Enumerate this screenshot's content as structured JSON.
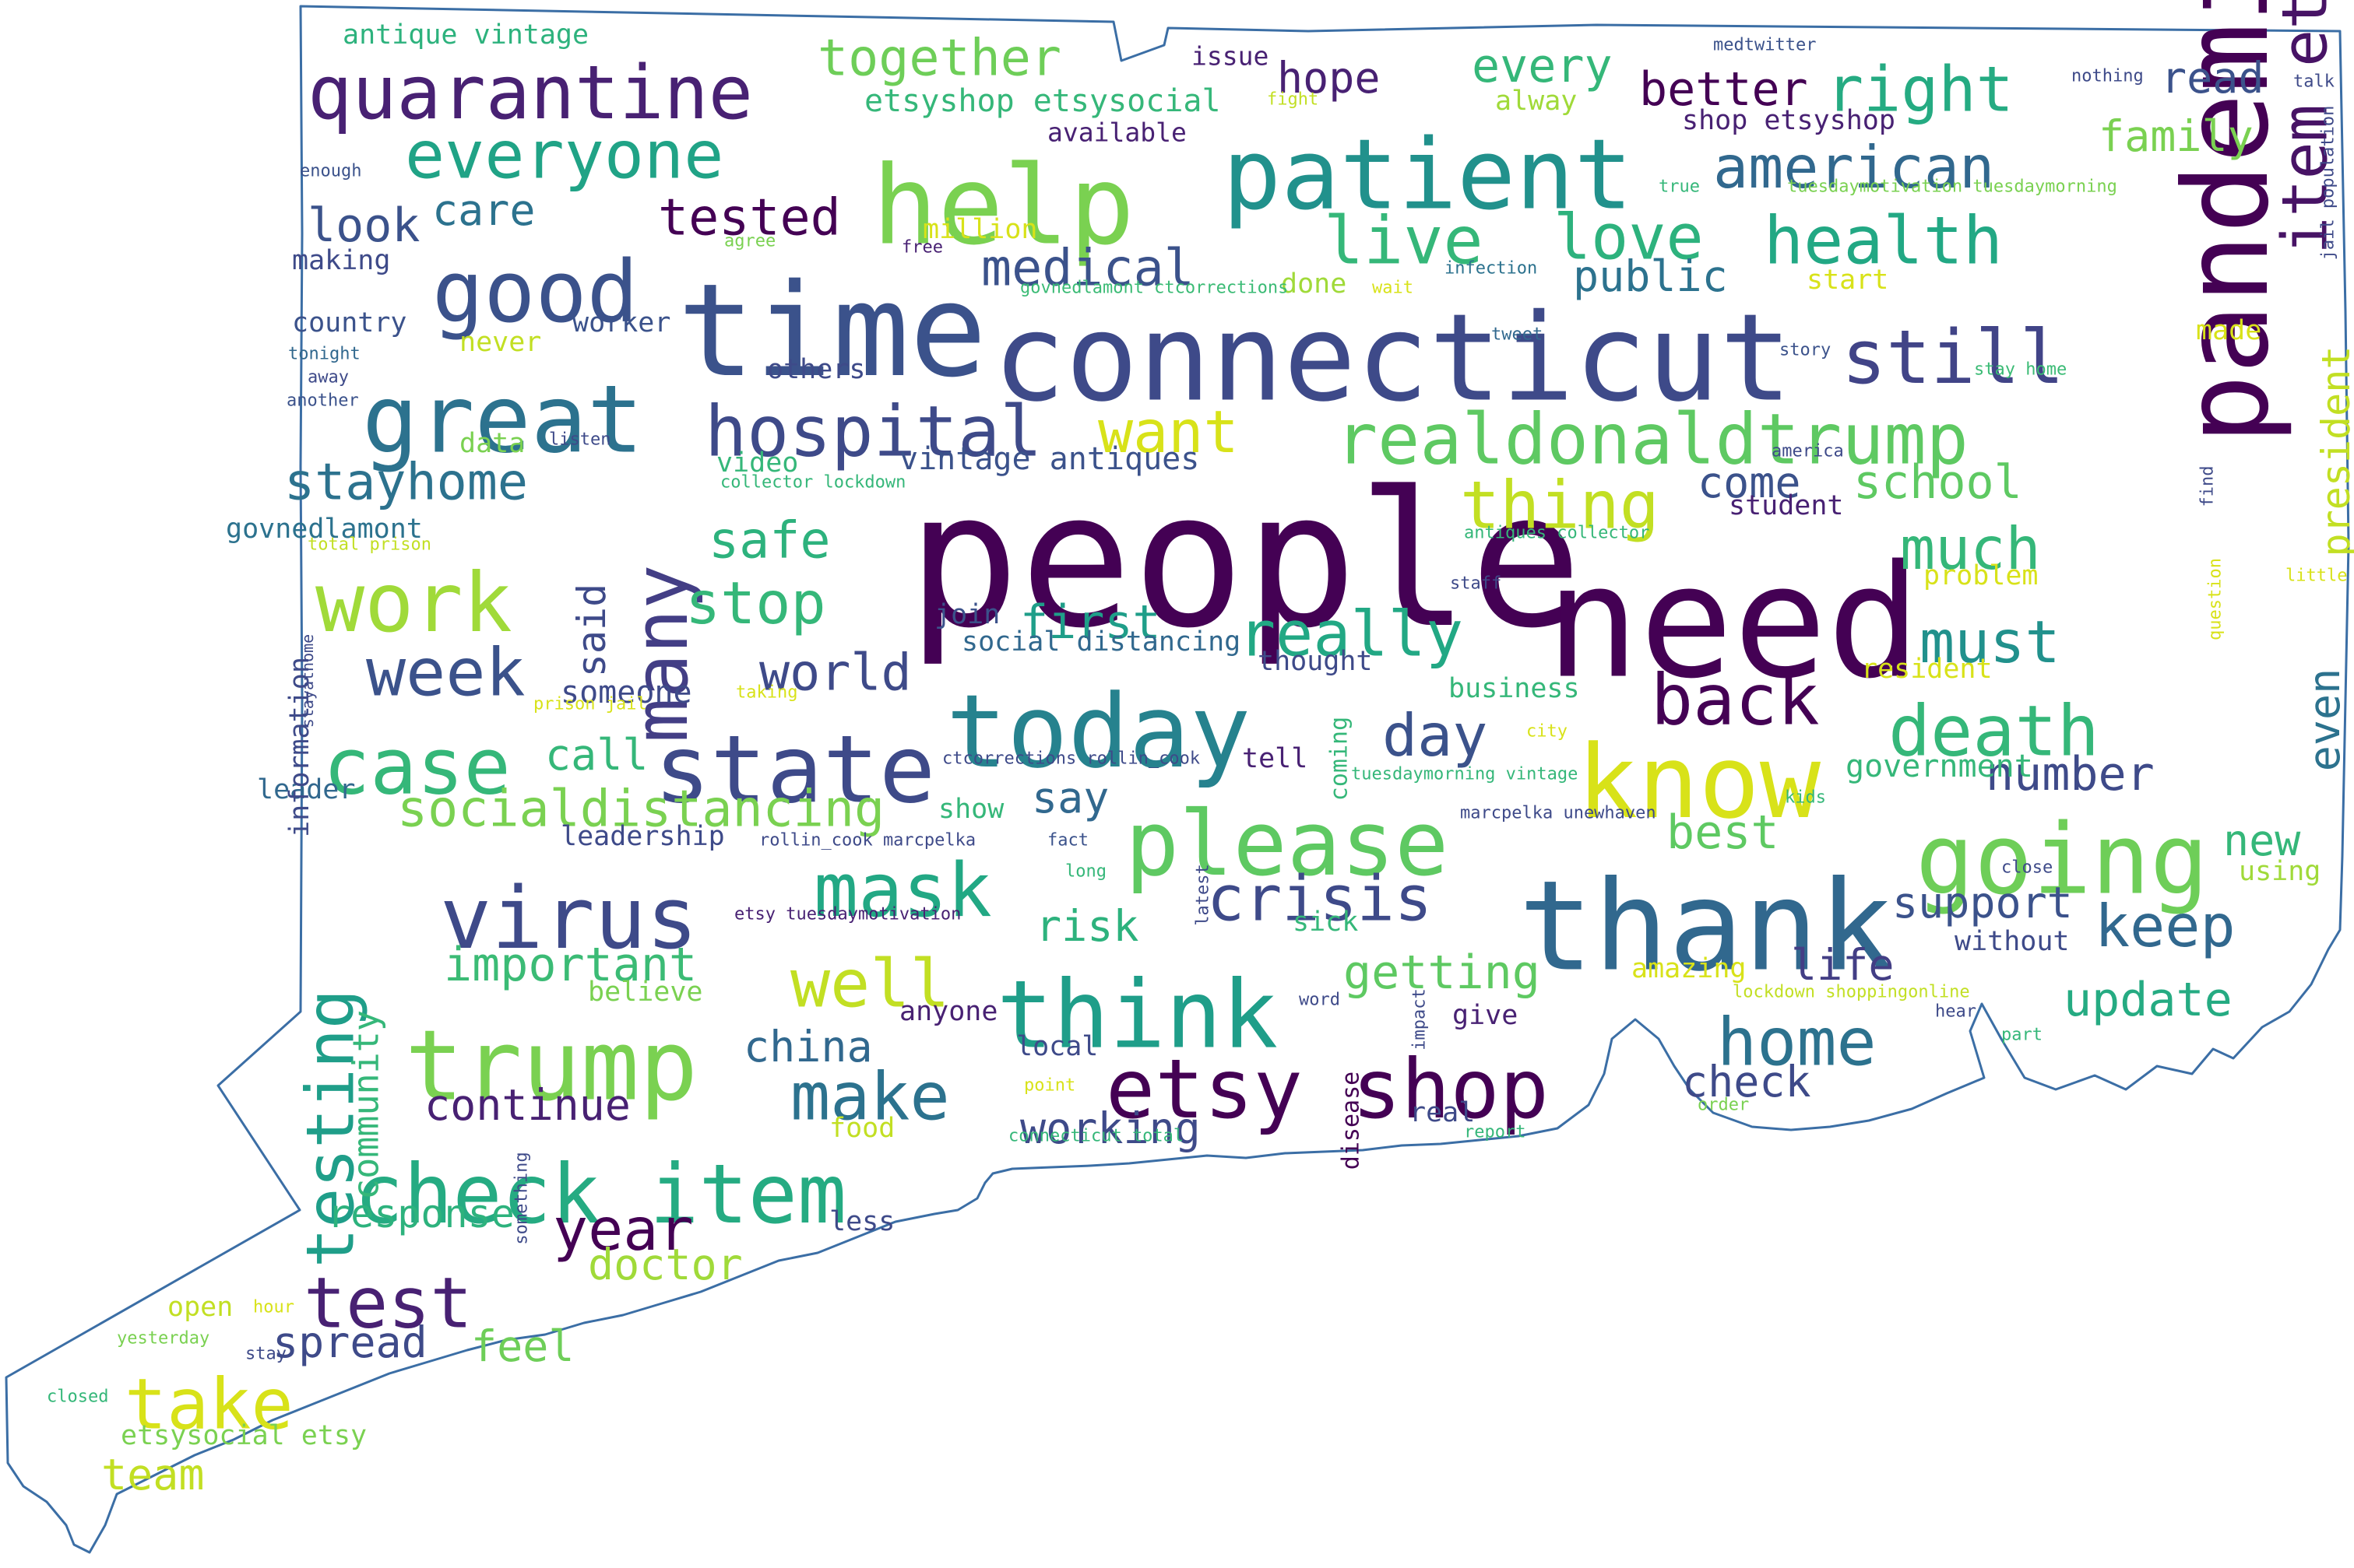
{
  "shape": {
    "outline_color": "#3b6ea5",
    "fill": "#ffffff"
  },
  "words": [
    {
      "t": "people",
      "c": "#440154"
    },
    {
      "t": "need",
      "c": "#440154"
    },
    {
      "t": "connecticut",
      "c": "#3e4a89"
    },
    {
      "t": "time",
      "c": "#3b528b"
    },
    {
      "t": "thank",
      "c": "#31688e"
    },
    {
      "t": "help",
      "c": "#7ad151"
    },
    {
      "t": "patient",
      "c": "#21918c"
    },
    {
      "t": "pandemic",
      "c": "#440154"
    },
    {
      "t": "know",
      "c": "#d8e219"
    },
    {
      "t": "today",
      "c": "#26828e"
    },
    {
      "t": "state",
      "c": "#3e4a89"
    },
    {
      "t": "trump",
      "c": "#7ad151"
    },
    {
      "t": "going",
      "c": "#6ece58"
    },
    {
      "t": "please",
      "c": "#5ec962"
    },
    {
      "t": "think",
      "c": "#1f9e89"
    },
    {
      "t": "virus",
      "c": "#3e4a89"
    },
    {
      "t": "good",
      "c": "#3b528b"
    },
    {
      "t": "great",
      "c": "#2c728e"
    },
    {
      "t": "check item",
      "c": "#25ab82"
    },
    {
      "t": "etsy shop",
      "c": "#440154"
    },
    {
      "t": "quarantine",
      "c": "#482173"
    },
    {
      "t": "realdonaldtrump",
      "c": "#5ec962"
    },
    {
      "t": "still",
      "c": "#414487"
    },
    {
      "t": "item etsy",
      "c": "#471365"
    },
    {
      "t": "case",
      "c": "#35b779"
    },
    {
      "t": "work",
      "c": "#a0da39"
    },
    {
      "t": "many",
      "c": "#433e85"
    },
    {
      "t": "testing",
      "c": "#1f9e89"
    },
    {
      "t": "everyone",
      "c": "#20a386"
    },
    {
      "t": "hospital",
      "c": "#3e4a89"
    },
    {
      "t": "mask",
      "c": "#22a884"
    },
    {
      "t": "make",
      "c": "#2c728e"
    },
    {
      "t": "take",
      "c": "#d8e219"
    },
    {
      "t": "test",
      "c": "#482173"
    },
    {
      "t": "week",
      "c": "#3b528b"
    },
    {
      "t": "well",
      "c": "#c2df23"
    },
    {
      "t": "home",
      "c": "#2c728e"
    },
    {
      "t": "death",
      "c": "#35b779"
    },
    {
      "t": "back",
      "c": "#440154"
    },
    {
      "t": "crisis",
      "c": "#3e4a89"
    },
    {
      "t": "american",
      "c": "#31688e"
    },
    {
      "t": "health",
      "c": "#22a884"
    },
    {
      "t": "right",
      "c": "#25ab82"
    },
    {
      "t": "love",
      "c": "#2db27d"
    },
    {
      "t": "live",
      "c": "#35b779"
    },
    {
      "t": "thing",
      "c": "#c2df23"
    },
    {
      "t": "want",
      "c": "#d8e219"
    },
    {
      "t": "really",
      "c": "#22a884"
    },
    {
      "t": "much",
      "c": "#35b779"
    },
    {
      "t": "must",
      "c": "#21918c"
    },
    {
      "t": "keep",
      "c": "#31688e"
    },
    {
      "t": "stop",
      "c": "#35b779"
    },
    {
      "t": "safe",
      "c": "#2db27d"
    },
    {
      "t": "day",
      "c": "#3b528b"
    },
    {
      "t": "year",
      "c": "#440154"
    },
    {
      "t": "socialdistancing",
      "c": "#7ad151"
    },
    {
      "t": "stayhome",
      "c": "#2c728e"
    },
    {
      "t": "world",
      "c": "#3e4a89"
    },
    {
      "t": "important",
      "c": "#3bbb75"
    },
    {
      "t": "together",
      "c": "#6ece58"
    },
    {
      "t": "tested",
      "c": "#440154"
    },
    {
      "t": "medical",
      "c": "#3b528b"
    },
    {
      "t": "china",
      "c": "#31688e"
    },
    {
      "t": "update",
      "c": "#25ab82"
    },
    {
      "t": "getting",
      "c": "#5ec962"
    },
    {
      "t": "community",
      "c": "#35b779"
    },
    {
      "t": "continue",
      "c": "#482173"
    },
    {
      "t": "working",
      "c": "#3e4a89"
    },
    {
      "t": "response",
      "c": "#2db27d"
    },
    {
      "t": "doctor",
      "c": "#a0da39"
    },
    {
      "t": "spread",
      "c": "#3e4a89"
    },
    {
      "t": "feel",
      "c": "#6ece58"
    },
    {
      "t": "team",
      "c": "#c2df23"
    },
    {
      "t": "look",
      "c": "#3b528b"
    },
    {
      "t": "care",
      "c": "#2c728e"
    },
    {
      "t": "school",
      "c": "#5ec962"
    },
    {
      "t": "first",
      "c": "#1f9e89"
    },
    {
      "t": "best",
      "c": "#5ec962"
    },
    {
      "t": "say",
      "c": "#31688e"
    },
    {
      "t": "call",
      "c": "#35b779"
    },
    {
      "t": "said",
      "c": "#3e4a89"
    },
    {
      "t": "number",
      "c": "#3e4a89"
    },
    {
      "t": "even",
      "c": "#2c728e"
    },
    {
      "t": "new",
      "c": "#35b779"
    },
    {
      "t": "president",
      "c": "#c2df23"
    },
    {
      "t": "support",
      "c": "#3b528b"
    },
    {
      "t": "life",
      "c": "#433e85"
    },
    {
      "t": "risk",
      "c": "#2db27d"
    },
    {
      "t": "government",
      "c": "#35b779"
    },
    {
      "t": "better",
      "c": "#440154"
    },
    {
      "t": "every",
      "c": "#35b779"
    },
    {
      "t": "hope",
      "c": "#482173"
    },
    {
      "t": "family",
      "c": "#7ad151"
    },
    {
      "t": "read",
      "c": "#3b528b"
    },
    {
      "t": "public",
      "c": "#2c728e"
    },
    {
      "t": "come",
      "c": "#3b528b"
    },
    {
      "t": "someone",
      "c": "#3e4a89"
    },
    {
      "t": "country",
      "c": "#3b528b"
    },
    {
      "t": "making",
      "c": "#3e4a89"
    },
    {
      "t": "leader",
      "c": "#31688e"
    },
    {
      "t": "leadership",
      "c": "#3e4a89"
    },
    {
      "t": "information",
      "c": "#3e4a89"
    },
    {
      "t": "govnedlamont",
      "c": "#2c728e"
    },
    {
      "t": "data",
      "c": "#7ad151"
    },
    {
      "t": "join",
      "c": "#3b528b"
    },
    {
      "t": "others",
      "c": "#3e4a89"
    },
    {
      "t": "video",
      "c": "#35b779"
    },
    {
      "t": "worker",
      "c": "#3b528b"
    },
    {
      "t": "never",
      "c": "#c2df23"
    },
    {
      "t": "done",
      "c": "#a0da39"
    },
    {
      "t": "show",
      "c": "#35b779"
    },
    {
      "t": "believe",
      "c": "#7ad151"
    },
    {
      "t": "open",
      "c": "#c2df23"
    },
    {
      "t": "less",
      "c": "#3e4a89"
    },
    {
      "t": "food",
      "c": "#c2df23"
    },
    {
      "t": "local",
      "c": "#3e4a89"
    },
    {
      "t": "anyone",
      "c": "#482173"
    },
    {
      "t": "tell",
      "c": "#482173"
    },
    {
      "t": "thought",
      "c": "#3e4a89"
    },
    {
      "t": "business",
      "c": "#35b779"
    },
    {
      "t": "give",
      "c": "#482173"
    },
    {
      "t": "real",
      "c": "#3e4a89"
    },
    {
      "t": "student",
      "c": "#482173"
    },
    {
      "t": "check",
      "c": "#3e4a89"
    },
    {
      "t": "start",
      "c": "#d8e219"
    },
    {
      "t": "made",
      "c": "#d8e219"
    },
    {
      "t": "problem",
      "c": "#d8e219"
    },
    {
      "t": "resident",
      "c": "#d8e219"
    },
    {
      "t": "sick",
      "c": "#35b779"
    },
    {
      "t": "coming",
      "c": "#35b779"
    },
    {
      "t": "disease",
      "c": "#440154"
    },
    {
      "t": "amazing",
      "c": "#d8e219"
    },
    {
      "t": "without",
      "c": "#3e4a89"
    },
    {
      "t": "using",
      "c": "#a0da39"
    },
    {
      "t": "alway",
      "c": "#a0da39"
    },
    {
      "t": "million",
      "c": "#d8e219"
    },
    {
      "t": "vintage antiques",
      "c": "#3b528b"
    },
    {
      "t": "social distancing",
      "c": "#31688e"
    },
    {
      "t": "etsyshop etsysocial",
      "c": "#35b779"
    },
    {
      "t": "etsysocial etsy",
      "c": "#7ad151"
    },
    {
      "t": "antique vintage",
      "c": "#2db27d"
    },
    {
      "t": "shop etsyshop",
      "c": "#482173"
    },
    {
      "t": "available",
      "c": "#482173"
    },
    {
      "t": "issue",
      "c": "#482173"
    },
    {
      "t": "fight",
      "c": "#c2df23"
    },
    {
      "t": "medtwitter",
      "c": "#3b528b"
    },
    {
      "t": "nothing",
      "c": "#3e4a89"
    },
    {
      "t": "talk",
      "c": "#3e4a89"
    },
    {
      "t": "true",
      "c": "#35b779"
    },
    {
      "t": "tuesdaymotivation tuesdaymorning",
      "c": "#7ad151"
    },
    {
      "t": "jail population",
      "c": "#3e4a89"
    },
    {
      "t": "agree",
      "c": "#7ad151"
    },
    {
      "t": "free",
      "c": "#482173"
    },
    {
      "t": "govnedlamont ctcorrections",
      "c": "#3bbb75"
    },
    {
      "t": "wait",
      "c": "#d8e219"
    },
    {
      "t": "infection",
      "c": "#2c728e"
    },
    {
      "t": "tweet",
      "c": "#31688e"
    },
    {
      "t": "story",
      "c": "#3b528b"
    },
    {
      "t": "stay home",
      "c": "#3bbb75"
    },
    {
      "t": "enough",
      "c": "#3b528b"
    },
    {
      "t": "tonight",
      "c": "#31688e"
    },
    {
      "t": "away",
      "c": "#3e4a89"
    },
    {
      "t": "another",
      "c": "#3b528b"
    },
    {
      "t": "listen",
      "c": "#3e4a89"
    },
    {
      "t": "collector lockdown",
      "c": "#35b779"
    },
    {
      "t": "america",
      "c": "#3e4a89"
    },
    {
      "t": "antiques collector",
      "c": "#35b779"
    },
    {
      "t": "staff",
      "c": "#3e4a89"
    },
    {
      "t": "total prison",
      "c": "#c2df23"
    },
    {
      "t": "stayathome",
      "c": "#3e4a89"
    },
    {
      "t": "prison jail",
      "c": "#d8e219"
    },
    {
      "t": "taking",
      "c": "#d8e219"
    },
    {
      "t": "city",
      "c": "#d8e219"
    },
    {
      "t": "ctcorrections rollin_cook",
      "c": "#3e4a89"
    },
    {
      "t": "tuesdaymorning vintage",
      "c": "#35b779"
    },
    {
      "t": "marcpelka unewhaven",
      "c": "#3e4a89"
    },
    {
      "t": "kids",
      "c": "#35b779"
    },
    {
      "t": "rollin_cook marcpelka",
      "c": "#3e4a89"
    },
    {
      "t": "fact",
      "c": "#3b528b"
    },
    {
      "t": "etsy tuesdaymotivation",
      "c": "#482173"
    },
    {
      "t": "long",
      "c": "#35b779"
    },
    {
      "t": "latest",
      "c": "#3e4a89"
    },
    {
      "t": "word",
      "c": "#3e4a89"
    },
    {
      "t": "impact",
      "c": "#3e4a89"
    },
    {
      "t": "close",
      "c": "#3e4a89"
    },
    {
      "t": "lockdown shoppingonline",
      "c": "#c2df23"
    },
    {
      "t": "hear",
      "c": "#3e4a89"
    },
    {
      "t": "part",
      "c": "#35b779"
    },
    {
      "t": "order",
      "c": "#7ad151"
    },
    {
      "t": "report",
      "c": "#35b779"
    },
    {
      "t": "point",
      "c": "#d8e219"
    },
    {
      "t": "connecticut total",
      "c": "#35b779"
    },
    {
      "t": "find",
      "c": "#3e4a89"
    },
    {
      "t": "question",
      "c": "#d8e219"
    },
    {
      "t": "little",
      "c": "#d8e219"
    },
    {
      "t": "something",
      "c": "#3e4a89"
    },
    {
      "t": "hour",
      "c": "#d8e219"
    },
    {
      "t": "yesterday",
      "c": "#7ad151"
    },
    {
      "t": "stay",
      "c": "#3e4a89"
    },
    {
      "t": "closed",
      "c": "#35b779"
    }
  ]
}
